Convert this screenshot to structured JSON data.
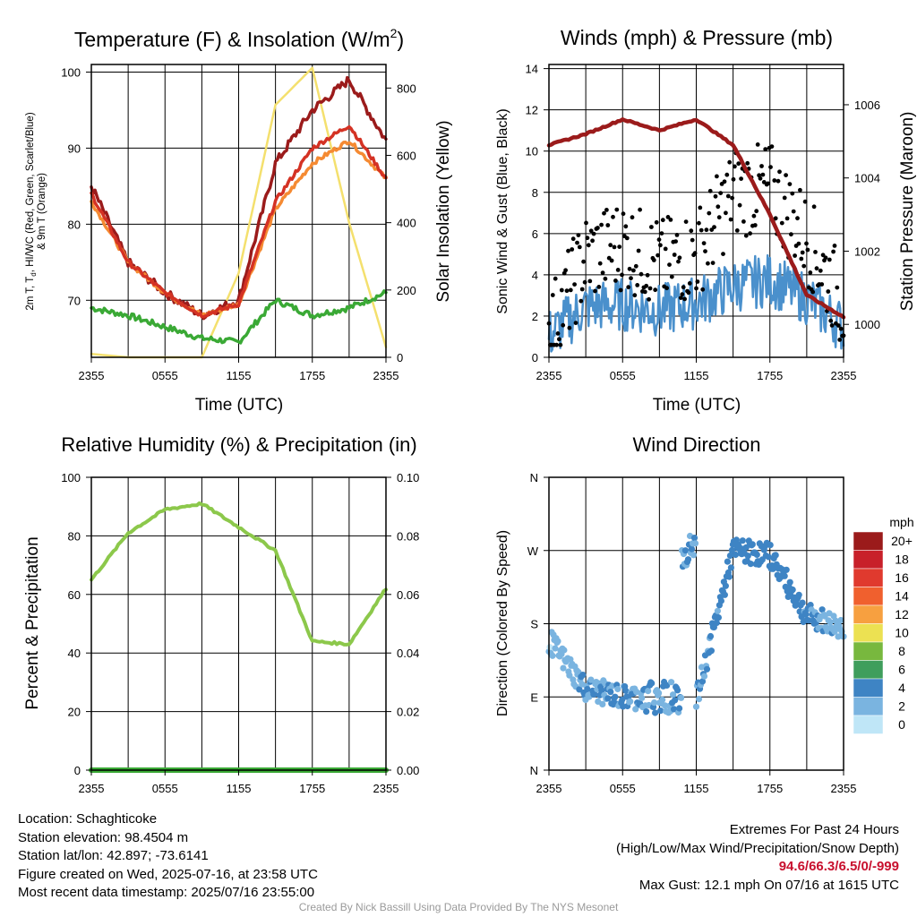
{
  "colors": {
    "frame": "#000000",
    "grid": "#000000",
    "temp_2m": "#d43224",
    "dewpoint_green": "#3aa935",
    "heat_index": "#9b1b1b",
    "temp_9m": "#f58a32",
    "insolation": "#f4e06e",
    "wind_speed": "#4a90cc",
    "wind_gust": "#000000",
    "pressure": "#9b1b1b",
    "humidity": "#8cc84b",
    "precip": "#3aa935"
  },
  "time_ticks": [
    "2355",
    "0555",
    "1155",
    "1755",
    "2355"
  ],
  "panels": {
    "temperature": {
      "title_main": "Temperature (F) & Insolation (W/m",
      "title_sup": "2",
      "title_end": ")",
      "xlabel": "Time (UTC)",
      "ylabel_line1": "2m T, T",
      "ylabel_sub": "d",
      "ylabel_line1b": ", HI/WC (Red, Green, Scarlet/Blue)",
      "ylabel_line2": "& 9m T (Orange)",
      "ylabel_right": "Solar Insolation (Yellow)",
      "y_ticks": [
        "70",
        "80",
        "90",
        "100"
      ],
      "y2_ticks": [
        "0",
        "200",
        "400",
        "600",
        "800"
      ]
    },
    "winds": {
      "title": "Winds (mph) & Pressure (mb)",
      "xlabel": "Time (UTC)",
      "ylabel": "Sonic Wind & Gust (Blue, Black)",
      "ylabel_right": "Station Pressure (Maroon)",
      "y_ticks": [
        "0",
        "2",
        "4",
        "6",
        "8",
        "10",
        "12",
        "14"
      ],
      "y2_ticks": [
        "1000",
        "1002",
        "1004",
        "1006"
      ]
    },
    "humidity": {
      "title": "Relative Humidity (%) & Precipitation (in)",
      "ylabel": "Percent & Precipitation",
      "y_ticks": [
        "0",
        "20",
        "40",
        "60",
        "80",
        "100"
      ],
      "y2_ticks": [
        "0.00",
        "0.02",
        "0.04",
        "0.06",
        "0.08",
        "0.10"
      ]
    },
    "direction": {
      "title": "Wind Direction",
      "ylabel": "Direction (Colored By Speed)",
      "y_ticks": [
        "N",
        "E",
        "S",
        "W",
        "N"
      ],
      "legend_title": "mph",
      "legend_labels": [
        "20+",
        "18",
        "16",
        "14",
        "12",
        "10",
        "8",
        "6",
        "4",
        "2",
        "0"
      ],
      "legend_colors": [
        "#9b1b1b",
        "#c8202a",
        "#e03a2e",
        "#f0602e",
        "#f7a040",
        "#ece152",
        "#78b83e",
        "#3f9e5c",
        "#3e84c4",
        "#7ab4e0",
        "#bfe6f7"
      ]
    }
  },
  "chart_data": [
    {
      "type": "line",
      "title": "Temperature (F) & Insolation (W/m2)",
      "xlabel": "Time (UTC)",
      "ylabel": "2m T, Td, HI/WC (Red, Green, Scarlet/Blue) & 9m T (Orange)",
      "y2label": "Solar Insolation (Yellow)",
      "x": [
        "2355",
        "0255",
        "0555",
        "0855",
        "1155",
        "1455",
        "1755",
        "2055",
        "2355"
      ],
      "ylim": [
        62.5,
        101
      ],
      "y2lim": [
        0,
        870
      ],
      "series": [
        {
          "name": "2m T",
          "axis": "left",
          "values": [
            84,
            75,
            71,
            68,
            69.5,
            83,
            90,
            93,
            86
          ]
        },
        {
          "name": "9m T",
          "axis": "left",
          "values": [
            83,
            75,
            71,
            68,
            69.5,
            82,
            88,
            91,
            86
          ]
        },
        {
          "name": "HI/WC",
          "axis": "left",
          "values": [
            85,
            75,
            71,
            68,
            70,
            88,
            95,
            99,
            91
          ]
        },
        {
          "name": "Td",
          "axis": "left",
          "values": [
            69,
            68,
            66.5,
            65,
            64.5,
            70,
            68,
            69,
            71
          ]
        },
        {
          "name": "Solar Insolation",
          "axis": "right",
          "values": [
            10,
            0,
            0,
            0,
            250,
            750,
            860,
            400,
            30
          ]
        }
      ]
    },
    {
      "type": "line",
      "title": "Winds (mph) & Pressure (mb)",
      "xlabel": "Time (UTC)",
      "ylabel": "Sonic Wind & Gust (Blue, Black)",
      "y2label": "Station Pressure (Maroon)",
      "x": [
        "2355",
        "0255",
        "0555",
        "0855",
        "1155",
        "1455",
        "1755",
        "2055",
        "2355"
      ],
      "ylim": [
        0,
        14.2
      ],
      "y2lim": [
        999.1,
        1007.1
      ],
      "series": [
        {
          "name": "Sonic Wind",
          "axis": "left",
          "values": [
            0.8,
            2.2,
            2.3,
            2.0,
            2.4,
            3.2,
            3.5,
            2.6,
            1.2
          ]
        },
        {
          "name": "Gust",
          "axis": "left",
          "values": [
            1.2,
            4.8,
            5.5,
            4.5,
            5.0,
            8.0,
            8.2,
            5.8,
            2.5
          ]
        },
        {
          "name": "Station Pressure",
          "axis": "right",
          "values": [
            1004.9,
            1005.2,
            1005.6,
            1005.3,
            1005.6,
            1004.9,
            1003.0,
            1000.8,
            1000.2
          ]
        }
      ]
    },
    {
      "type": "line",
      "title": "Relative Humidity (%) & Precipitation (in)",
      "ylabel": "Percent & Precipitation",
      "x": [
        "2355",
        "0255",
        "0555",
        "0855",
        "1155",
        "1455",
        "1755",
        "2055",
        "2355"
      ],
      "ylim": [
        0,
        100
      ],
      "y2lim": [
        0,
        0.1
      ],
      "series": [
        {
          "name": "Relative Humidity",
          "axis": "left",
          "values": [
            65,
            81,
            89,
            91,
            83,
            75,
            44,
            43,
            62
          ]
        },
        {
          "name": "Precipitation",
          "axis": "right",
          "values": [
            0,
            0,
            0,
            0,
            0,
            0,
            0,
            0,
            0
          ]
        }
      ]
    },
    {
      "type": "scatter",
      "title": "Wind Direction",
      "ylabel": "Direction (Colored By Speed)",
      "x": [
        "2355",
        "0255",
        "0555",
        "0855",
        "1155",
        "1455",
        "1755",
        "2055",
        "2355"
      ],
      "ylim": [
        0,
        360
      ],
      "yticks": [
        "N",
        "E",
        "S",
        "W",
        "N"
      ],
      "series": [
        {
          "name": "Direction",
          "values": [
            160,
            100,
            90,
            90,
            85,
            270,
            265,
            190,
            175
          ]
        }
      ]
    }
  ],
  "footer": {
    "location": "Location: Schaghticoke",
    "elevation": "Station elevation: 98.4504 m",
    "latlon": "Station lat/lon: 42.897; -73.6141",
    "created": "Figure created on Wed, 2025-07-16, at 23:58 UTC",
    "recent": "Most recent data timestamp: 2025/07/16 23:55:00",
    "extremes_title": "Extremes For Past 24 Hours",
    "extremes_sub": "(High/Low/Max Wind/Precipitation/Snow Depth)",
    "extremes_values": "94.6/66.3/6.5/0/-999",
    "max_gust": "Max Gust: 12.1 mph On 07/16 at 1615 UTC",
    "credit": "Created By Nick Bassill Using Data Provided By The NYS Mesonet"
  }
}
